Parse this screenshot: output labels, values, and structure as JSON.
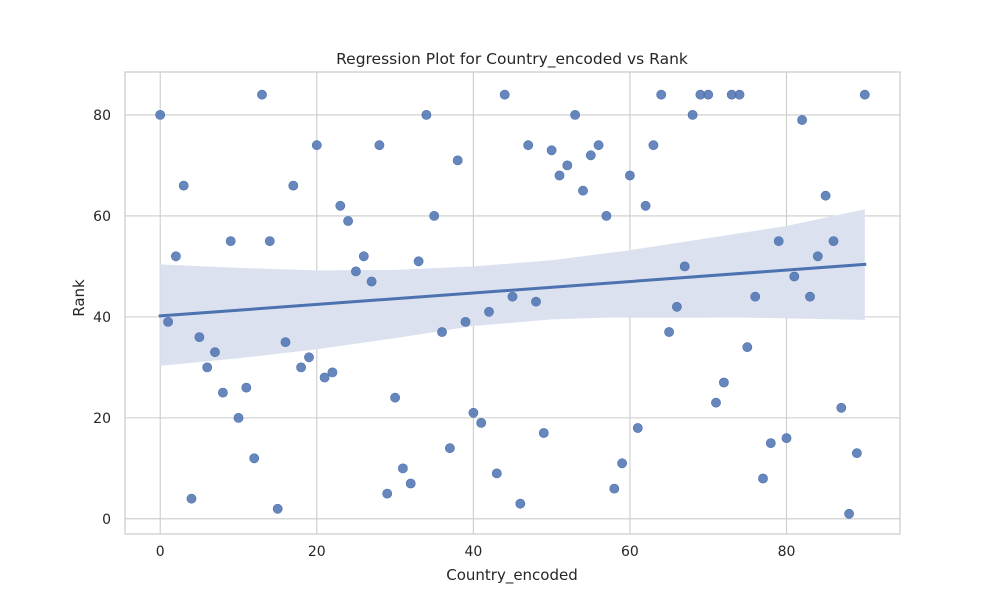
{
  "chart_data": {
    "type": "scatter",
    "title": "Regression Plot for Country_encoded vs Rank",
    "xlabel": "Country_encoded",
    "ylabel": "Rank",
    "xlim": [
      -4.5,
      94.5
    ],
    "ylim": [
      -3,
      88.5
    ],
    "xticks": [
      0,
      20,
      40,
      60,
      80
    ],
    "yticks": [
      0,
      20,
      40,
      60,
      80
    ],
    "grid": true,
    "colors": {
      "points": "#4c72b0",
      "line": "#4c72b0",
      "band": "#dbe1ef",
      "grid": "#cccccc",
      "background": "#ffffff"
    },
    "series": [
      {
        "x": [
          0,
          1,
          2,
          3,
          4,
          5,
          6,
          7,
          8,
          9,
          10,
          11,
          12,
          13,
          14,
          15,
          16,
          17,
          18,
          19,
          20,
          21,
          22,
          23,
          24,
          25,
          26,
          27,
          28,
          29,
          30,
          31,
          32,
          33,
          34,
          35,
          36,
          37,
          38,
          39,
          40,
          41,
          42,
          43,
          44,
          45,
          46,
          47,
          48,
          49,
          50,
          51,
          52,
          53,
          54,
          55,
          56,
          57,
          58,
          59,
          60,
          61,
          62,
          63,
          64,
          65,
          66,
          67,
          68,
          69,
          70,
          71,
          72,
          73,
          74,
          75,
          76,
          77,
          78,
          79,
          80,
          81,
          82,
          83,
          84,
          85,
          86,
          87,
          88,
          89,
          90
        ],
        "y": [
          80,
          39,
          52,
          66,
          4,
          36,
          30,
          33,
          25,
          55,
          20,
          26,
          12,
          84,
          55,
          2,
          35,
          66,
          30,
          32,
          74,
          28,
          29,
          62,
          59,
          49,
          52,
          47,
          74,
          5,
          24,
          10,
          7,
          51,
          80,
          60,
          37,
          14,
          71,
          39,
          21,
          19,
          41,
          9,
          84,
          44,
          3,
          74,
          43,
          17,
          73,
          68,
          70,
          80,
          65,
          72,
          74,
          60,
          6,
          11,
          68,
          18,
          62,
          74,
          84,
          37,
          42,
          50,
          80,
          84,
          84,
          23,
          27,
          84,
          84,
          34,
          44,
          8,
          15,
          55,
          16,
          48,
          79,
          44,
          52,
          64,
          55,
          22,
          1,
          13,
          84
        ]
      }
    ],
    "regression": {
      "x": [
        0,
        90
      ],
      "y": [
        40.2,
        50.4
      ],
      "ci_x": [
        0,
        10,
        20,
        30,
        40,
        50,
        60,
        70,
        80,
        90
      ],
      "ci_upper": [
        50.4,
        49.7,
        49.2,
        49.3,
        50.0,
        51.2,
        53.2,
        55.6,
        58.0,
        61.3
      ],
      "ci_lower": [
        30.3,
        31.8,
        33.6,
        35.8,
        38.2,
        39.5,
        40.0,
        40.0,
        39.7,
        39.4
      ]
    }
  }
}
